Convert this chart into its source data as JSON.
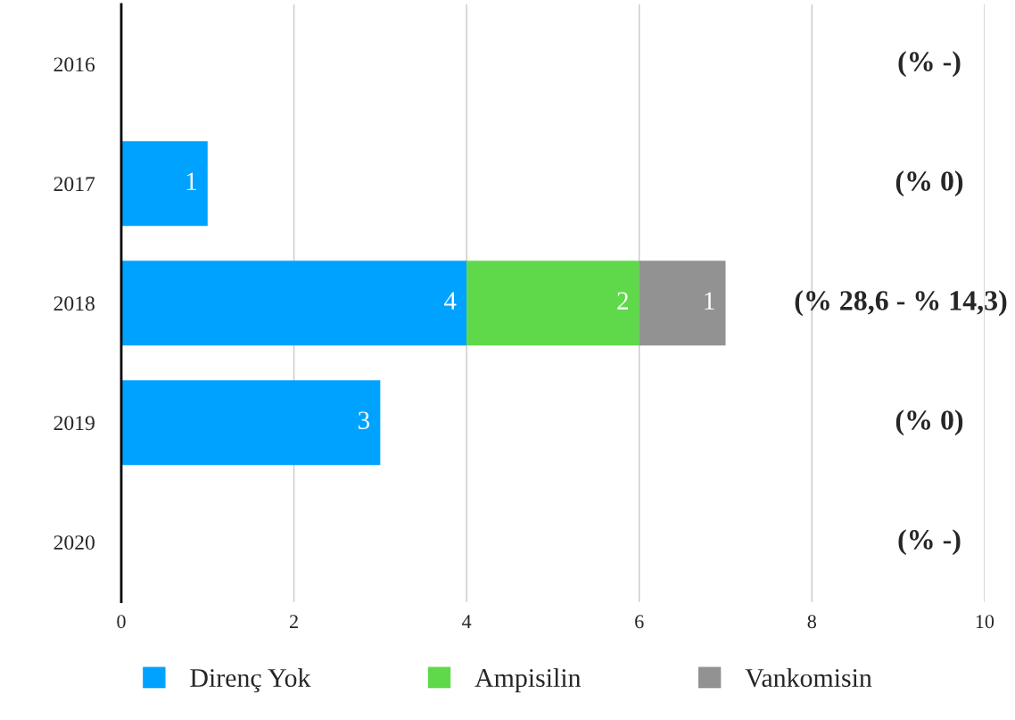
{
  "chart_data": {
    "type": "bar",
    "orientation": "horizontal",
    "stacked": true,
    "categories": [
      "2016",
      "2017",
      "2018",
      "2019",
      "2020"
    ],
    "series": [
      {
        "name": "Direnç Yok",
        "color": "#00a2ff",
        "values": [
          null,
          1,
          4,
          3,
          null
        ]
      },
      {
        "name": "Ampisilin",
        "color": "#5fd94a",
        "values": [
          null,
          null,
          2,
          null,
          null
        ]
      },
      {
        "name": "Vankomisin",
        "color": "#929292",
        "values": [
          null,
          null,
          1,
          null,
          null
        ]
      }
    ],
    "xlim": [
      0,
      10
    ],
    "xticks": [
      0,
      2,
      4,
      6,
      8,
      10
    ],
    "grid": "x",
    "legend": "bottom",
    "data_labels": true,
    "annotations": [
      "(% -)",
      "(% 0)",
      "(% 28,6 - % 14,3)",
      "(% 0)",
      "(% -)"
    ]
  }
}
